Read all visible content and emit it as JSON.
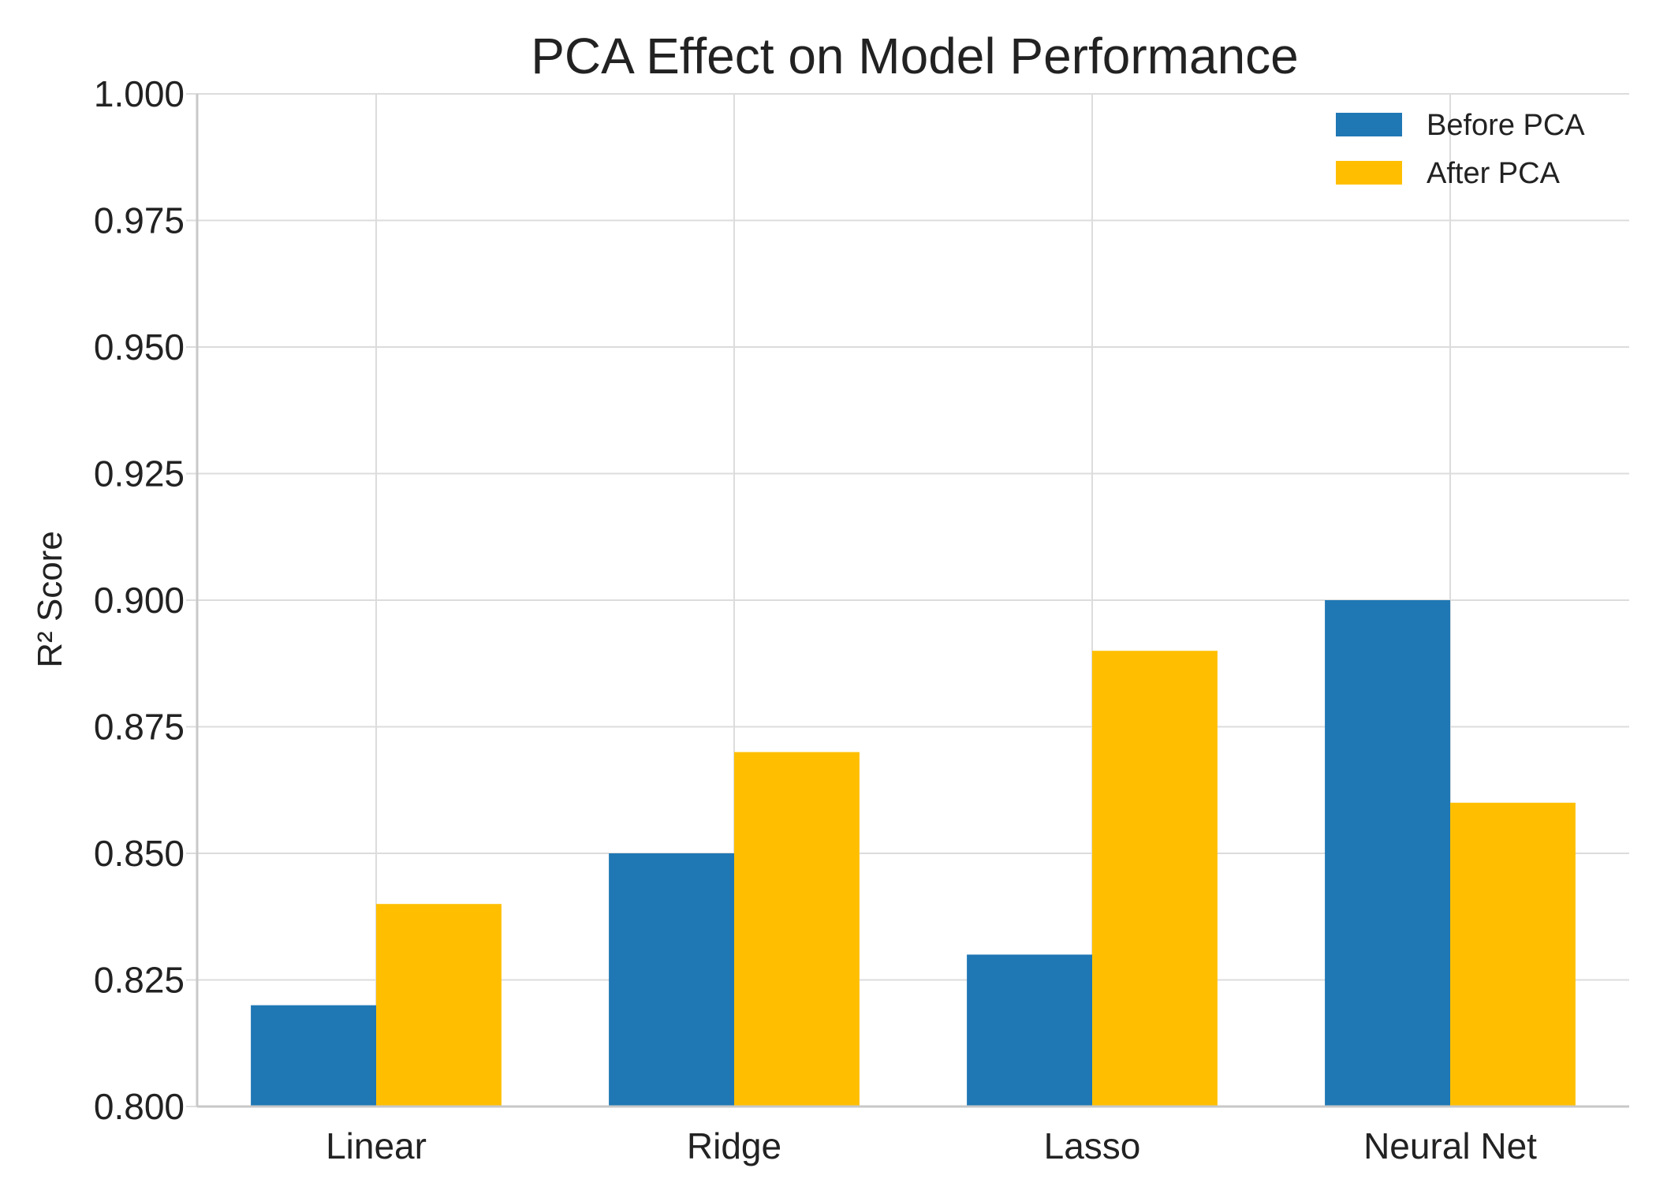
{
  "chart_data": {
    "type": "bar",
    "title": "PCA Effect on Model Performance",
    "xlabel": "",
    "ylabel": "R² Score",
    "categories": [
      "Linear",
      "Ridge",
      "Lasso",
      "Neural Net"
    ],
    "series": [
      {
        "name": "Before PCA",
        "color": "#1f77b4",
        "values": [
          0.82,
          0.85,
          0.83,
          0.9
        ]
      },
      {
        "name": "After PCA",
        "color": "#ffbf00",
        "values": [
          0.84,
          0.87,
          0.89,
          0.86
        ]
      }
    ],
    "ylim": [
      0.8,
      1.0
    ],
    "yticks": [
      "0.800",
      "0.825",
      "0.850",
      "0.875",
      "0.900",
      "0.925",
      "0.950",
      "0.975",
      "1.000"
    ],
    "grid": true,
    "legend_position": "top-right"
  }
}
